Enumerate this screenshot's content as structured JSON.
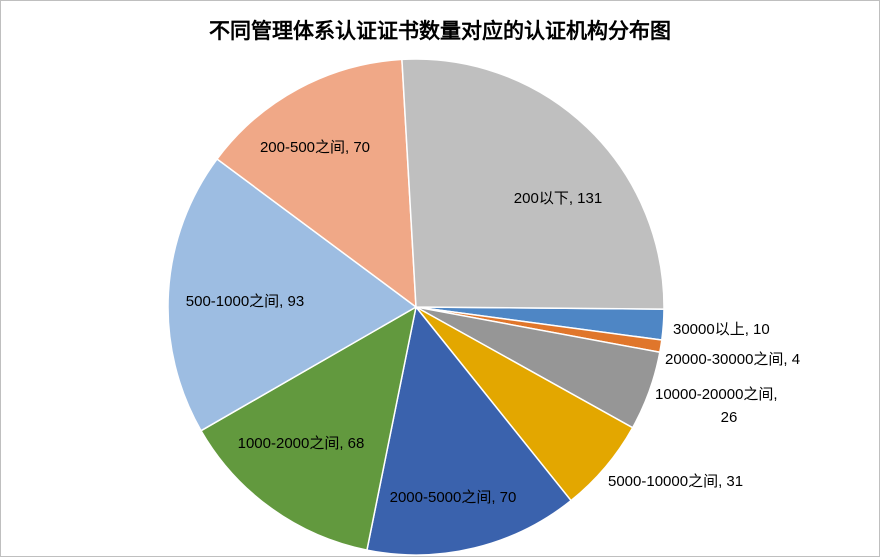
{
  "chart_data": {
    "type": "pie",
    "title": "不同管理体系认证证书数量对应的认证机构分布图",
    "slices": [
      {
        "category": "30000以上",
        "value": 10,
        "label": "30000以上, 10",
        "color": "#4e86c5"
      },
      {
        "category": "20000-30000之间",
        "value": 4,
        "label": "20000-30000之间, 4",
        "color": "#e0762b"
      },
      {
        "category": "10000-20000之间",
        "value": 26,
        "label": "10000-20000之间,",
        "label2": "26",
        "color": "#969696"
      },
      {
        "category": "5000-10000之间",
        "value": 31,
        "label": "5000-10000之间, 31",
        "color": "#e3a700"
      },
      {
        "category": "2000-5000之间",
        "value": 70,
        "label": "2000-5000之间, 70",
        "color": "#3a62ad"
      },
      {
        "category": "1000-2000之间",
        "value": 68,
        "label": "1000-2000之间, 68",
        "color": "#62993e"
      },
      {
        "category": "500-1000之间",
        "value": 93,
        "label": "500-1000之间, 93",
        "color": "#9dbde2"
      },
      {
        "category": "200-500之间",
        "value": 70,
        "label": "200-500之间, 70",
        "color": "#f0a887"
      },
      {
        "category": "200以下",
        "value": 131,
        "label": "200以下, 131",
        "color": "#bfbfbf"
      }
    ],
    "legend": "none",
    "data_labels": "category-and-value"
  }
}
